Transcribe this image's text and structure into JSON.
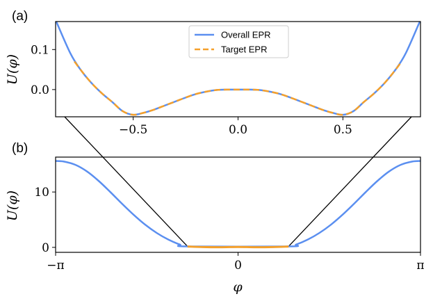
{
  "chart_data": [
    {
      "panel_label": "(a)",
      "type": "line",
      "ylabel": "U(φ)",
      "xlabel": "",
      "xlim": [
        -0.87,
        0.87
      ],
      "ylim": [
        -0.068,
        0.17
      ],
      "xticks": [
        -0.5,
        0.0,
        0.5
      ],
      "xtick_labels": [
        "−0.5",
        "0.0",
        "0.5"
      ],
      "yticks": [
        0.0,
        0.1
      ],
      "ytick_labels": [
        "0.0",
        "0.1"
      ],
      "grid": false,
      "legend_position": "top-center",
      "series": [
        {
          "name": "Overall EPR",
          "color": "#5b8ff0",
          "style": "solid",
          "x": [
            -0.87,
            -0.8,
            -0.75,
            -0.7,
            -0.65,
            -0.6,
            -0.55,
            -0.5,
            -0.45,
            -0.4,
            -0.35,
            -0.3,
            -0.25,
            -0.2,
            -0.15,
            -0.1,
            -0.05,
            0.0,
            0.05,
            0.1,
            0.15,
            0.2,
            0.25,
            0.3,
            0.35,
            0.4,
            0.45,
            0.5,
            0.55,
            0.6,
            0.65,
            0.7,
            0.75,
            0.8,
            0.87
          ],
          "y": [
            0.174,
            0.091,
            0.049,
            0.017,
            -0.009,
            -0.031,
            -0.054,
            -0.063,
            -0.058,
            -0.05,
            -0.04,
            -0.03,
            -0.02,
            -0.011,
            -0.005,
            -0.001,
            0.0,
            0.0,
            0.0,
            -0.001,
            -0.005,
            -0.011,
            -0.02,
            -0.03,
            -0.04,
            -0.05,
            -0.058,
            -0.063,
            -0.054,
            -0.031,
            -0.009,
            0.017,
            0.049,
            0.091,
            0.174
          ]
        },
        {
          "name": "Target EPR",
          "color": "#f5a02a",
          "style": "dashed",
          "x": [
            -0.78,
            -0.75,
            -0.7,
            -0.65,
            -0.6,
            -0.55,
            -0.5,
            -0.45,
            -0.4,
            -0.35,
            -0.3,
            -0.25,
            -0.2,
            -0.15,
            -0.1,
            -0.05,
            0.0,
            0.05,
            0.1,
            0.15,
            0.2,
            0.25,
            0.3,
            0.35,
            0.4,
            0.45,
            0.5,
            0.55,
            0.6,
            0.65,
            0.7,
            0.75,
            0.78
          ],
          "y": [
            0.07,
            0.049,
            0.017,
            -0.009,
            -0.031,
            -0.054,
            -0.063,
            -0.058,
            -0.05,
            -0.04,
            -0.03,
            -0.02,
            -0.011,
            -0.005,
            -0.001,
            0.0,
            0.0,
            0.0,
            -0.001,
            -0.005,
            -0.011,
            -0.02,
            -0.03,
            -0.04,
            -0.05,
            -0.058,
            -0.063,
            -0.054,
            -0.031,
            -0.009,
            0.017,
            0.049,
            0.07
          ]
        }
      ]
    },
    {
      "panel_label": "(b)",
      "type": "line",
      "ylabel": "U(φ)",
      "xlabel": "φ",
      "xlim": [
        -3.14159,
        3.14159
      ],
      "ylim": [
        -0.9,
        16.3
      ],
      "xticks": [
        -3.14159,
        0.0,
        3.14159
      ],
      "xtick_labels": [
        "−π",
        "0",
        "π"
      ],
      "yticks": [
        0,
        10
      ],
      "ytick_labels": [
        "0",
        "10"
      ],
      "grid": false,
      "series": [
        {
          "name": "Overall EPR",
          "color": "#5b8ff0",
          "style": "solid",
          "x": [
            -3.14159,
            -3.0,
            -2.8,
            -2.6,
            -2.4,
            -2.2,
            -2.0,
            -1.8,
            -1.6,
            -1.4,
            -1.2,
            -1.0,
            -0.87,
            0.87,
            1.0,
            1.2,
            1.4,
            1.6,
            1.8,
            2.0,
            2.2,
            2.4,
            2.6,
            2.8,
            3.0,
            3.14159
          ],
          "y": [
            15.6,
            15.5,
            14.9,
            13.7,
            12.0,
            10.0,
            7.9,
            5.9,
            4.1,
            2.6,
            1.4,
            0.5,
            0.17,
            0.17,
            0.5,
            1.4,
            2.6,
            4.1,
            5.9,
            7.9,
            10.0,
            12.0,
            13.7,
            14.9,
            15.5,
            15.6
          ]
        },
        {
          "name": "Target EPR",
          "color": "#f5a02a",
          "style": "solid",
          "x": [
            -0.87,
            -0.6,
            -0.3,
            0.0,
            0.3,
            0.6,
            0.87
          ],
          "y": [
            0.15,
            0.05,
            0.02,
            0.08,
            0.02,
            0.05,
            0.15
          ]
        }
      ],
      "zoom_region": [
        -0.87,
        0.87
      ]
    }
  ]
}
